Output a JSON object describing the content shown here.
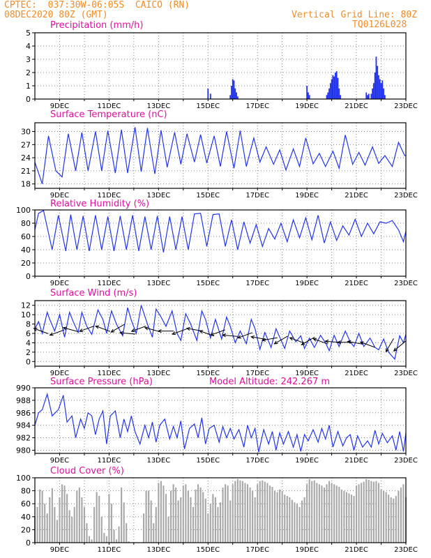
{
  "header": {
    "station_line": "CPTEC:  037:30W-06:05S  CAICO (RN)",
    "date_line": "08DEC2020 80Z (GMT)",
    "grid_line_label": "Vertical Grid Line: 80Z",
    "code": "TQ0126L028"
  },
  "colors": {
    "header": "#f08c28",
    "title": "#e0109e",
    "line": "#2233ee",
    "bar": "#2233ee",
    "cloud": "#a8a8a8",
    "wind_arrow": "#000000"
  },
  "x_tick_labels": [
    "9DEC",
    "11DEC",
    "13DEC",
    "15DEC",
    "17DEC",
    "19DEC",
    "21DEC",
    "23DEC"
  ],
  "chart_data": [
    {
      "id": "precip",
      "type": "bar",
      "title": "Precipitation (mm/h)",
      "ylim": [
        0,
        5
      ],
      "yticks": [
        0,
        1,
        2,
        3,
        4,
        5
      ],
      "x_unit": "days since 08DEC2020 00Z",
      "x": [
        7.0,
        7.1,
        7.9,
        7.95,
        8.0,
        8.05,
        8.1,
        8.15,
        8.2,
        11.0,
        11.05,
        11.1,
        11.8,
        11.85,
        11.9,
        11.95,
        12.0,
        12.05,
        12.1,
        12.15,
        12.2,
        12.25,
        12.3,
        12.35,
        13.4,
        13.45,
        13.5,
        13.6,
        13.65,
        13.7,
        13.75,
        13.8,
        13.85,
        13.9,
        13.95,
        14.0,
        14.05,
        14.1,
        14.15
      ],
      "values": [
        0.8,
        0.4,
        0.3,
        1.0,
        1.5,
        1.4,
        0.8,
        0.5,
        0.2,
        1.0,
        0.5,
        0.3,
        0.3,
        0.5,
        0.8,
        1.2,
        1.5,
        1.8,
        1.7,
        2.0,
        2.1,
        1.6,
        0.8,
        0.3,
        0.5,
        0.3,
        0.4,
        0.4,
        0.8,
        1.2,
        2.0,
        3.2,
        2.5,
        1.8,
        1.5,
        1.2,
        1.4,
        0.8,
        0.3
      ]
    },
    {
      "id": "temperature",
      "type": "line",
      "title": "Surface Temperature (nC)",
      "ylim": [
        17,
        32
      ],
      "yticks": [
        18,
        21,
        24,
        27,
        30
      ],
      "x_unit": "days since 08DEC2020 00Z",
      "x": [
        0.0,
        0.3,
        0.55,
        0.85,
        1.1,
        1.35,
        1.65,
        1.9,
        2.15,
        2.45,
        2.7,
        2.95,
        3.25,
        3.5,
        3.75,
        4.05,
        4.3,
        4.55,
        4.85,
        5.1,
        5.35,
        5.65,
        5.9,
        6.15,
        6.45,
        6.7,
        6.95,
        7.25,
        7.5,
        7.75,
        8.05,
        8.3,
        8.55,
        8.85,
        9.1,
        9.35,
        9.65,
        9.9,
        10.15,
        10.45,
        10.7,
        10.95,
        11.25,
        11.5,
        11.75,
        12.05,
        12.3,
        12.55,
        12.85,
        13.1,
        13.35,
        13.65,
        13.9,
        14.15,
        14.45,
        14.7,
        14.95,
        15.0
      ],
      "values": [
        23.0,
        18.0,
        29.0,
        21.0,
        19.6,
        29.5,
        21.0,
        29.8,
        21.0,
        30.0,
        21.0,
        30.2,
        20.5,
        30.4,
        20.5,
        31.0,
        20.8,
        30.8,
        20.3,
        30.3,
        21.8,
        29.8,
        22.5,
        29.5,
        23.0,
        29.3,
        22.8,
        29.0,
        22.0,
        30.0,
        21.6,
        30.2,
        22.0,
        28.5,
        23.0,
        26.5,
        22.5,
        25.8,
        21.2,
        26.0,
        22.0,
        28.5,
        22.6,
        25.0,
        22.0,
        25.5,
        21.6,
        29.2,
        22.5,
        25.2,
        22.3,
        26.5,
        22.7,
        24.5,
        22.0,
        27.5,
        24.5,
        24.5
      ]
    },
    {
      "id": "humidity",
      "type": "line",
      "title": "Relative Humidity (%)",
      "ylim": [
        0,
        100
      ],
      "yticks": [
        0,
        20,
        40,
        60,
        80,
        100
      ],
      "x_unit": "days since 08DEC2020 00Z",
      "x": [
        0.0,
        0.15,
        0.35,
        0.7,
        0.95,
        1.25,
        1.45,
        1.7,
        1.95,
        2.2,
        2.45,
        2.7,
        2.95,
        3.2,
        3.45,
        3.7,
        3.95,
        4.2,
        4.45,
        4.7,
        4.95,
        5.2,
        5.45,
        5.7,
        5.95,
        6.2,
        6.45,
        6.7,
        6.95,
        7.2,
        7.45,
        7.7,
        7.95,
        8.2,
        8.45,
        8.7,
        8.95,
        9.2,
        9.45,
        9.7,
        9.95,
        10.2,
        10.45,
        10.7,
        10.95,
        11.2,
        11.45,
        11.7,
        11.95,
        12.2,
        12.45,
        12.7,
        12.95,
        13.2,
        13.45,
        13.7,
        13.95,
        14.2,
        14.45,
        14.7,
        14.9,
        15.0
      ],
      "values": [
        70,
        95,
        99,
        40,
        92,
        38,
        93,
        40,
        91,
        38,
        92,
        40,
        90,
        38,
        91,
        40,
        92,
        38,
        90,
        40,
        91,
        36,
        90,
        40,
        90,
        40,
        94,
        95,
        45,
        93,
        94,
        45,
        85,
        40,
        82,
        50,
        78,
        45,
        72,
        56,
        80,
        52,
        85,
        58,
        88,
        55,
        92,
        50,
        82,
        54,
        76,
        62,
        86,
        60,
        80,
        64,
        82,
        80,
        84,
        70,
        52,
        68
      ]
    },
    {
      "id": "wind",
      "type": "line",
      "title": "Surface Wind (m/s)",
      "ylim": [
        -1,
        13
      ],
      "yticks": [
        0,
        2,
        4,
        6,
        8,
        10,
        12
      ],
      "x_unit": "days since 08DEC2020 00Z",
      "x": [
        0.0,
        0.15,
        0.3,
        0.5,
        0.6,
        0.8,
        1.0,
        1.2,
        1.4,
        1.55,
        1.75,
        1.9,
        2.1,
        2.3,
        2.55,
        2.75,
        2.9,
        3.1,
        3.3,
        3.55,
        3.75,
        3.9,
        4.1,
        4.3,
        4.55,
        4.75,
        4.9,
        5.1,
        5.3,
        5.55,
        5.75,
        5.9,
        6.1,
        6.3,
        6.55,
        6.75,
        6.9,
        7.1,
        7.3,
        7.55,
        7.75,
        7.9,
        8.1,
        8.3,
        8.55,
        8.75,
        8.9,
        9.1,
        9.3,
        9.55,
        9.75,
        9.9,
        10.1,
        10.3,
        10.55,
        10.75,
        10.9,
        11.1,
        11.3,
        11.55,
        11.75,
        11.9,
        12.1,
        12.3,
        12.55,
        12.75,
        12.9,
        13.1,
        13.3,
        13.55,
        13.75,
        13.9,
        14.1,
        14.3,
        14.55,
        14.75,
        14.9,
        15.0
      ],
      "values": [
        7.0,
        8.5,
        6.0,
        10.5,
        9.0,
        6.5,
        10.0,
        5.2,
        10.5,
        8.5,
        6.2,
        10.5,
        7.5,
        5.8,
        11.0,
        9.0,
        6.0,
        10.8,
        8.0,
        5.5,
        11.5,
        8.8,
        6.0,
        12.0,
        8.0,
        5.2,
        11.2,
        9.5,
        7.5,
        10.8,
        6.0,
        4.5,
        10.2,
        8.0,
        4.5,
        10.8,
        9.0,
        5.0,
        9.0,
        4.8,
        9.5,
        7.5,
        4.0,
        6.5,
        3.8,
        9.0,
        7.0,
        2.6,
        6.2,
        3.0,
        7.0,
        5.2,
        2.8,
        6.5,
        4.2,
        5.5,
        2.8,
        5.0,
        3.0,
        5.6,
        4.0,
        2.3,
        5.6,
        3.2,
        6.5,
        4.2,
        3.2,
        6.0,
        3.2,
        5.0,
        3.0,
        2.5,
        4.8,
        2.0,
        0.5,
        5.5,
        4.0,
        5.8
      ],
      "arrows_x": [
        0.25,
        0.9,
        1.45,
        2.1,
        2.75,
        3.35,
        3.75,
        4.2,
        4.75,
        5.3,
        5.85,
        6.45,
        6.95,
        7.4,
        7.9,
        8.5,
        9.05,
        9.5,
        9.95,
        10.6,
        11.05,
        11.55,
        12.05,
        12.55,
        12.95,
        13.45,
        14.35,
        14.75
      ],
      "arrows_speed": [
        6.5,
        6.2,
        6.8,
        7.0,
        7.0,
        7.1,
        6.0,
        7.0,
        6.8,
        6.5,
        6.4,
        6.8,
        6.0,
        6.2,
        5.5,
        5.6,
        5.0,
        4.8,
        4.6,
        4.5,
        4.4,
        4.3,
        4.2,
        4.1,
        4.0,
        3.6,
        3.5,
        3.3
      ],
      "arrows_dir_deg": [
        160,
        200,
        165,
        200,
        160,
        210,
        175,
        200,
        165,
        180,
        200,
        170,
        160,
        200,
        175,
        200,
        170,
        190,
        210,
        160,
        210,
        160,
        175,
        180,
        170,
        160,
        240,
        220
      ]
    },
    {
      "id": "pressure",
      "type": "line",
      "title": "Surface Pressure (hPa)",
      "annotation": "Model Altitude: 242.267 m",
      "ylim": [
        979.5,
        990
      ],
      "yticks": [
        980,
        982,
        984,
        986,
        988,
        990
      ],
      "x_unit": "days since 08DEC2020 00Z",
      "x": [
        0.0,
        0.15,
        0.3,
        0.5,
        0.7,
        0.95,
        1.15,
        1.3,
        1.5,
        1.65,
        1.85,
        2.0,
        2.15,
        2.3,
        2.45,
        2.6,
        2.75,
        2.9,
        3.05,
        3.25,
        3.45,
        3.6,
        3.75,
        3.9,
        4.05,
        4.25,
        4.45,
        4.6,
        4.75,
        4.9,
        5.05,
        5.25,
        5.45,
        5.6,
        5.75,
        5.9,
        6.05,
        6.25,
        6.45,
        6.6,
        6.75,
        6.9,
        7.05,
        7.25,
        7.45,
        7.6,
        7.75,
        7.9,
        8.05,
        8.25,
        8.45,
        8.6,
        8.75,
        8.9,
        9.05,
        9.25,
        9.45,
        9.6,
        9.75,
        9.9,
        10.05,
        10.25,
        10.45,
        10.6,
        10.75,
        10.9,
        11.05,
        11.25,
        11.45,
        11.6,
        11.75,
        11.9,
        12.05,
        12.25,
        12.45,
        12.6,
        12.75,
        12.9,
        13.05,
        13.25,
        13.45,
        13.6,
        13.75,
        13.9,
        14.05,
        14.25,
        14.45,
        14.6,
        14.75,
        14.9,
        15.0
      ],
      "values": [
        984.0,
        986.0,
        986.5,
        989.0,
        985.5,
        986.5,
        988.8,
        984.5,
        985.5,
        982.0,
        985.0,
        983.5,
        986.0,
        985.5,
        982.5,
        985.0,
        986.3,
        981.0,
        985.5,
        986.3,
        982.0,
        985.0,
        983.0,
        985.5,
        983.0,
        981.0,
        984.0,
        982.0,
        984.5,
        981.3,
        984.0,
        985.0,
        981.8,
        983.8,
        982.0,
        984.7,
        980.2,
        983.5,
        984.2,
        982.0,
        985.2,
        981.0,
        983.5,
        984.0,
        981.3,
        983.8,
        982.0,
        983.5,
        981.8,
        983.3,
        980.5,
        984.0,
        982.0,
        983.5,
        979.7,
        983.3,
        981.0,
        983.0,
        980.0,
        982.8,
        981.0,
        983.0,
        980.5,
        982.5,
        979.8,
        982.5,
        981.5,
        983.3,
        981.3,
        983.5,
        981.8,
        984.0,
        980.5,
        983.0,
        980.7,
        982.0,
        982.5,
        980.0,
        982.3,
        980.5,
        981.5,
        980.5,
        983.2,
        981.0,
        982.7,
        981.2,
        982.3,
        980.0,
        983.0,
        979.8,
        982.8
      ]
    },
    {
      "id": "cloud",
      "type": "area",
      "title": "Cloud Cover (%)",
      "ylim": [
        0,
        100
      ],
      "yticks": [
        0,
        20,
        40,
        60,
        80,
        100
      ],
      "x_unit": "days since 08DEC2020 00Z",
      "x": [
        0.0,
        0.1,
        0.2,
        0.3,
        0.4,
        0.5,
        0.6,
        0.7,
        0.8,
        0.9,
        1.0,
        1.1,
        1.2,
        1.3,
        1.4,
        1.5,
        1.6,
        1.7,
        1.8,
        1.9,
        2.0,
        2.1,
        2.2,
        2.3,
        2.4,
        2.5,
        2.6,
        2.7,
        2.8,
        2.9,
        3.0,
        3.1,
        3.2,
        3.3,
        3.4,
        3.5,
        3.6,
        3.7,
        3.8,
        3.9,
        4.0,
        4.1,
        4.2,
        4.3,
        4.4,
        4.5,
        4.6,
        4.7,
        4.8,
        4.9,
        5.0,
        5.1,
        5.2,
        5.3,
        5.4,
        5.5,
        5.6,
        5.7,
        5.8,
        5.9,
        6.0,
        6.1,
        6.2,
        6.3,
        6.4,
        6.5,
        6.6,
        6.7,
        6.8,
        6.9,
        7.0,
        7.1,
        7.2,
        7.3,
        7.4,
        7.5,
        7.6,
        7.7,
        7.8,
        7.9,
        8.0,
        8.1,
        8.2,
        8.3,
        8.4,
        8.5,
        8.6,
        8.7,
        8.8,
        8.9,
        9.0,
        9.1,
        9.2,
        9.3,
        9.4,
        9.5,
        9.6,
        9.7,
        9.8,
        9.9,
        10.0,
        10.1,
        10.2,
        10.3,
        10.4,
        10.5,
        10.6,
        10.7,
        10.8,
        10.9,
        11.0,
        11.1,
        11.2,
        11.3,
        11.4,
        11.5,
        11.6,
        11.7,
        11.8,
        11.9,
        12.0,
        12.1,
        12.2,
        12.3,
        12.4,
        12.5,
        12.6,
        12.7,
        12.8,
        12.9,
        13.0,
        13.1,
        13.2,
        13.3,
        13.4,
        13.5,
        13.6,
        13.7,
        13.8,
        13.9,
        14.0,
        14.1,
        14.2,
        14.3,
        14.4,
        14.5,
        14.6,
        14.7,
        14.8,
        14.9,
        15.0
      ],
      "values": [
        40,
        55,
        82,
        80,
        60,
        45,
        70,
        84,
        55,
        35,
        70,
        90,
        88,
        75,
        50,
        40,
        55,
        80,
        85,
        70,
        55,
        30,
        10,
        5,
        55,
        78,
        72,
        40,
        15,
        10,
        75,
        60,
        20,
        5,
        25,
        85,
        62,
        30,
        2,
        0,
        0,
        0,
        0,
        0,
        45,
        80,
        80,
        65,
        30,
        55,
        92,
        95,
        88,
        75,
        40,
        80,
        90,
        85,
        65,
        70,
        88,
        90,
        80,
        70,
        55,
        82,
        90,
        85,
        78,
        68,
        45,
        60,
        75,
        70,
        55,
        62,
        85,
        90,
        88,
        65,
        90,
        95,
        98,
        96,
        95,
        92,
        90,
        85,
        80,
        70,
        90,
        95,
        96,
        94,
        92,
        88,
        86,
        80,
        78,
        82,
        80,
        74,
        72,
        70,
        66,
        62,
        60,
        55,
        65,
        70,
        90,
        98,
        95,
        96,
        92,
        90,
        88,
        85,
        90,
        95,
        92,
        90,
        88,
        86,
        82,
        80,
        78,
        76,
        74,
        72,
        88,
        90,
        92,
        94,
        98,
        97,
        95,
        94,
        95,
        92,
        82,
        80,
        78,
        74,
        70,
        68,
        72,
        80,
        85,
        90,
        70
      ]
    }
  ]
}
